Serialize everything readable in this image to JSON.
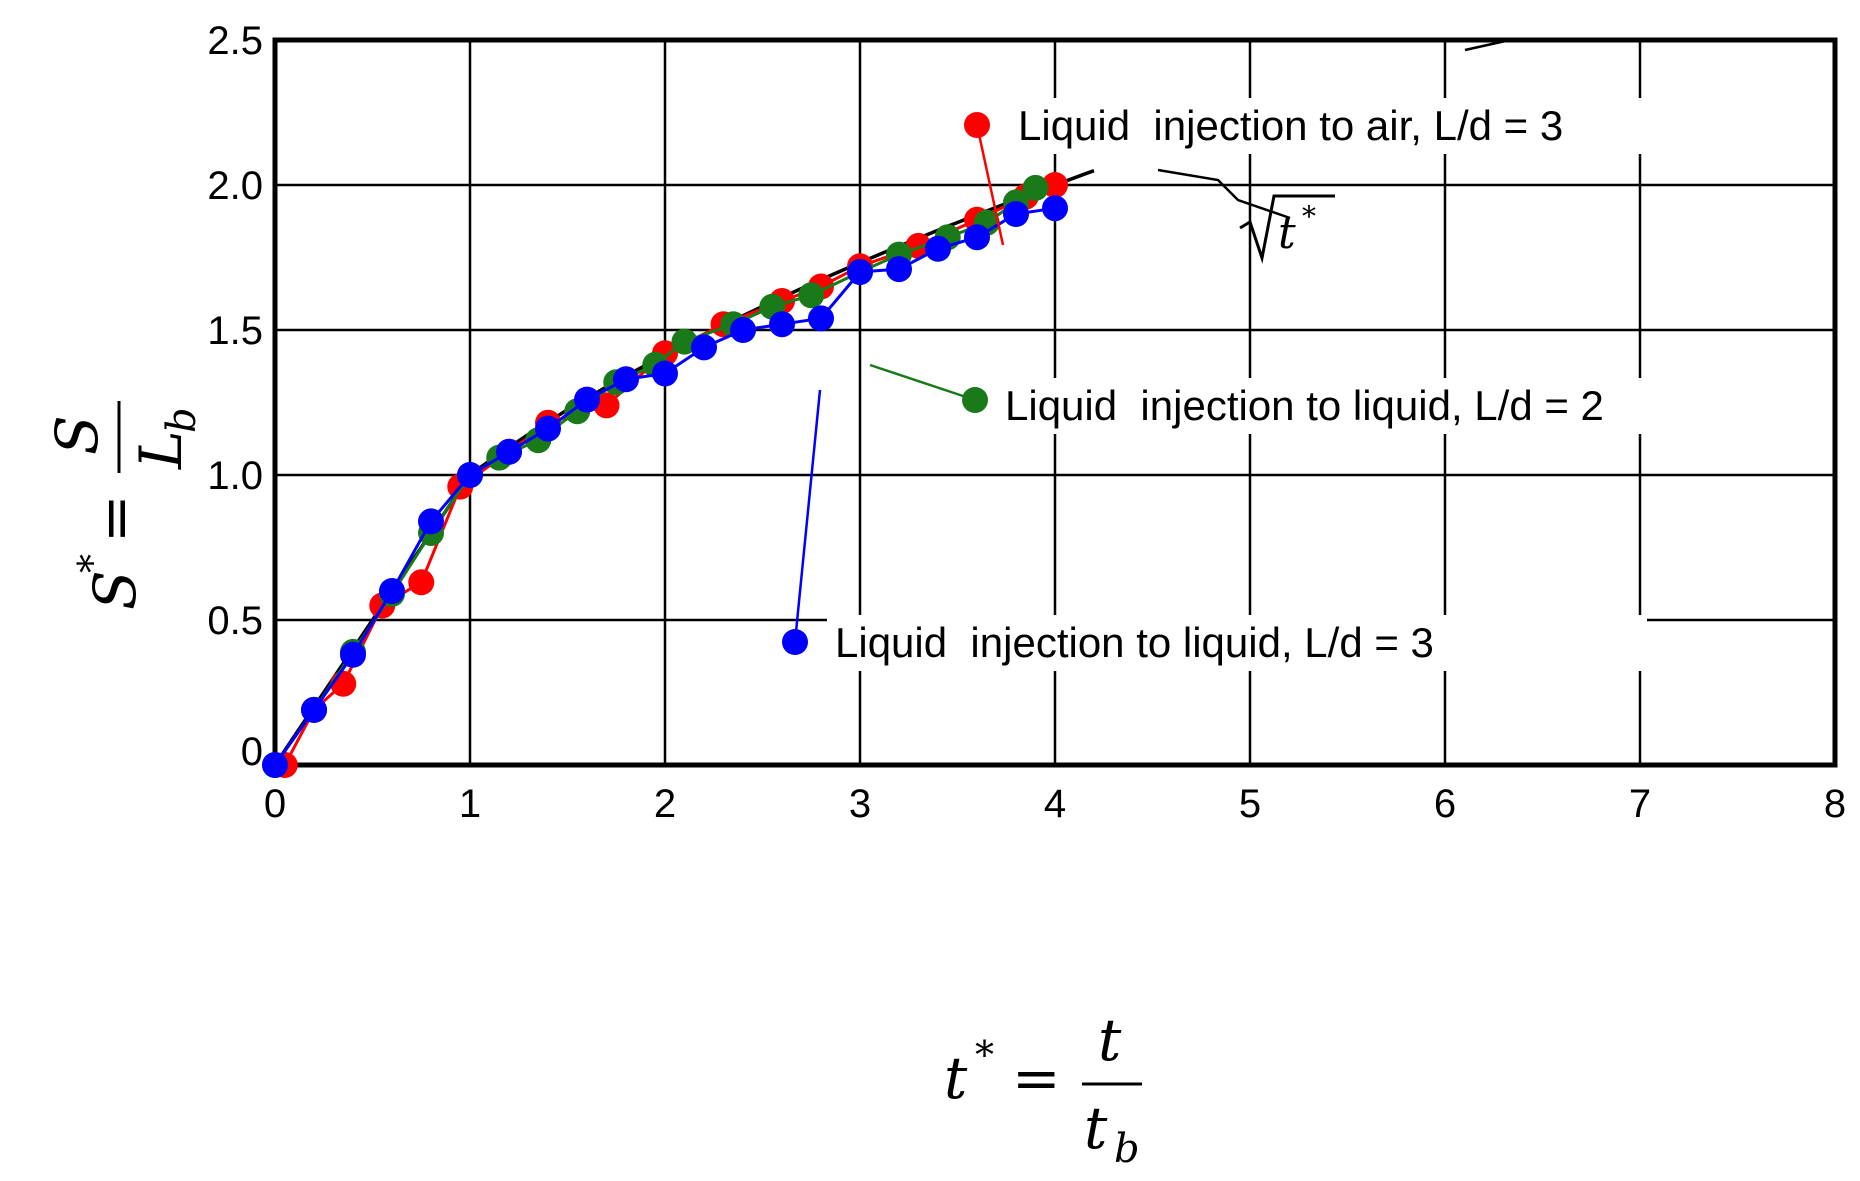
{
  "chart_data": {
    "type": "line",
    "title": "",
    "xlabel": {
      "lhs": "t",
      "sup": "*",
      "eq": "=",
      "num": "t",
      "den": "t",
      "den_sub": "b"
    },
    "ylabel": {
      "lhs": "S",
      "sup": "*",
      "eq": "=",
      "num": "S",
      "den": "L",
      "den_sub": "b"
    },
    "xlim": [
      0,
      8
    ],
    "ylim": [
      0,
      2.5
    ],
    "xticks": [
      "0",
      "1",
      "2",
      "3",
      "4",
      "5",
      "6",
      "7",
      "8"
    ],
    "yticks": [
      "0",
      "0.5",
      "1.0",
      "1.5",
      "2.0",
      "2.5"
    ],
    "grid": true,
    "reference_curve": {
      "label": "t",
      "label_sup": "*",
      "formula": "sqrt(t*)",
      "color": "#000000",
      "x_range": [
        1,
        4.2
      ]
    },
    "series": [
      {
        "name": "Liquid  injection to air, L/d = 3",
        "color": "#ff0000",
        "x": [
          0.05,
          0.2,
          0.35,
          0.55,
          0.75,
          0.95,
          1.2,
          1.4,
          1.7,
          2.0,
          2.3,
          2.6,
          2.8,
          3.0,
          3.3,
          3.6,
          3.85,
          4.0
        ],
        "y": [
          0.0,
          0.19,
          0.28,
          0.55,
          0.63,
          0.96,
          1.08,
          1.18,
          1.24,
          1.42,
          1.52,
          1.6,
          1.65,
          1.72,
          1.79,
          1.88,
          1.96,
          2.0
        ]
      },
      {
        "name": "Liquid  injection to liquid, L/d = 2",
        "color": "#1a7a1a",
        "x": [
          0.0,
          0.2,
          0.4,
          0.6,
          0.8,
          1.0,
          1.15,
          1.35,
          1.55,
          1.75,
          1.95,
          2.1,
          2.35,
          2.55,
          2.75,
          3.0,
          3.2,
          3.45,
          3.65,
          3.8,
          3.9
        ],
        "y": [
          0.0,
          0.19,
          0.39,
          0.59,
          0.8,
          1.0,
          1.06,
          1.12,
          1.22,
          1.32,
          1.38,
          1.46,
          1.52,
          1.58,
          1.62,
          1.7,
          1.76,
          1.82,
          1.87,
          1.94,
          1.99
        ]
      },
      {
        "name": "Liquid  injection to liquid, L/d = 3",
        "color": "#0000ff",
        "x": [
          0.0,
          0.2,
          0.4,
          0.6,
          0.8,
          1.0,
          1.2,
          1.4,
          1.6,
          1.8,
          2.0,
          2.2,
          2.4,
          2.6,
          2.8,
          3.0,
          3.2,
          3.4,
          3.6,
          3.8,
          4.0
        ],
        "y": [
          0.0,
          0.19,
          0.38,
          0.6,
          0.84,
          1.0,
          1.08,
          1.16,
          1.26,
          1.33,
          1.35,
          1.44,
          1.5,
          1.52,
          1.54,
          1.7,
          1.71,
          1.78,
          1.82,
          1.9,
          1.92
        ]
      }
    ]
  }
}
